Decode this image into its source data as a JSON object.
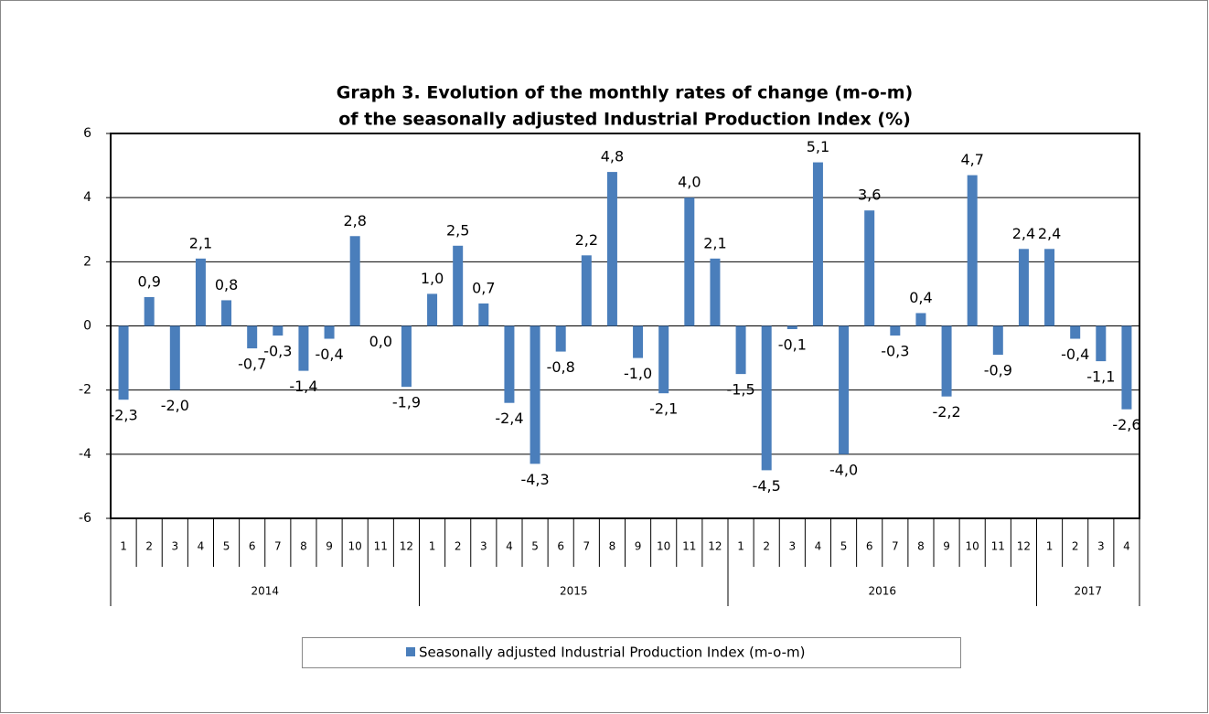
{
  "chart_data": {
    "type": "bar",
    "title": [
      "Graph 3. Evolution of the monthly rates of change (m-o-m)",
      "of the seasonally adjusted Industrial Production Index (%)"
    ],
    "category_groups": [
      {
        "label": "2014",
        "categories": [
          "1",
          "2",
          "3",
          "4",
          "5",
          "6",
          "7",
          "8",
          "9",
          "10",
          "11",
          "12"
        ]
      },
      {
        "label": "2015",
        "categories": [
          "1",
          "2",
          "3",
          "4",
          "5",
          "6",
          "7",
          "8",
          "9",
          "10",
          "11",
          "12"
        ]
      },
      {
        "label": "2016",
        "categories": [
          "1",
          "2",
          "3",
          "4",
          "5",
          "6",
          "7",
          "8",
          "9",
          "10",
          "11",
          "12"
        ]
      },
      {
        "label": "2017",
        "categories": [
          "1",
          "2",
          "3",
          "4"
        ]
      }
    ],
    "series": [
      {
        "name": "Seasonally adjusted Industrial Production Index (m-o-m)",
        "color": "#4a7ebb",
        "values": [
          -2.3,
          0.9,
          -2.0,
          2.1,
          0.8,
          -0.7,
          -0.3,
          -1.4,
          -0.4,
          2.8,
          0.0,
          -1.9,
          1.0,
          2.5,
          0.7,
          -2.4,
          -4.3,
          -0.8,
          2.2,
          4.8,
          -1.0,
          -2.1,
          4.0,
          2.1,
          -1.5,
          -4.5,
          -0.1,
          5.1,
          -4.0,
          3.6,
          -0.3,
          0.4,
          -2.2,
          4.7,
          -0.9,
          2.4,
          2.4,
          -0.4,
          -1.1,
          -2.6
        ],
        "value_labels": [
          "-2,3",
          "0,9",
          "-2,0",
          "2,1",
          "0,8",
          "-0,7",
          "-0,3",
          "-1,4",
          "-0,4",
          "2,8",
          "0,0",
          "-1,9",
          "1,0",
          "2,5",
          "0,7",
          "-2,4",
          "-4,3",
          "-0,8",
          "2,2",
          "4,8",
          "-1,0",
          "-2,1",
          "4,0",
          "2,1",
          "-1,5",
          "-4,5",
          "-0,1",
          "5,1",
          "-4,0",
          "3,6",
          "-0,3",
          "0,4",
          "-2,2",
          "4,7",
          "-0,9",
          "2,4",
          "2,4",
          "-0,4",
          "-1,1",
          "-2,6"
        ]
      }
    ],
    "ylim": [
      -6,
      6
    ],
    "yticks": [
      -6,
      -4,
      -2,
      0,
      2,
      4,
      6
    ],
    "grid": true,
    "legend": "bottom"
  }
}
